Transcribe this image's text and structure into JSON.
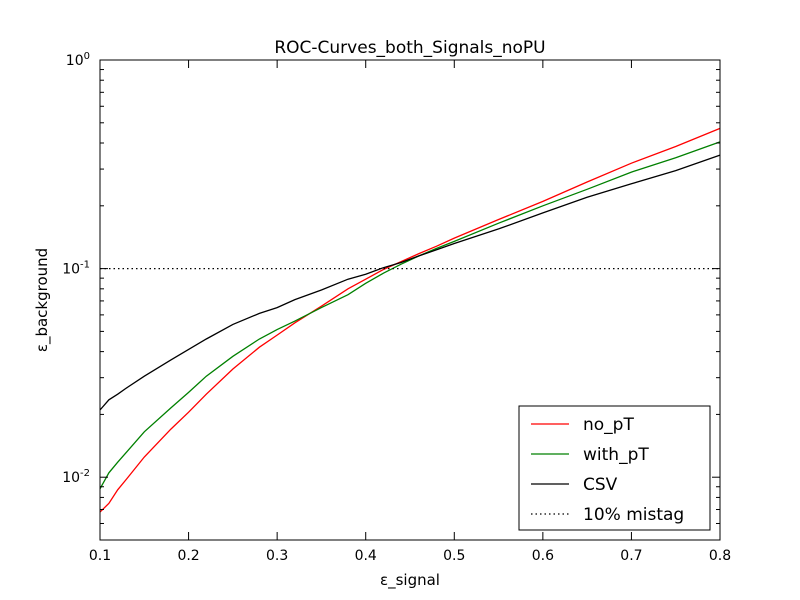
{
  "chart_data": {
    "type": "line",
    "title": "ROC-Curves_both_Signals_noPU",
    "xlabel": "ε_signal",
    "ylabel": "ε_background",
    "xlim": [
      0.1,
      0.8
    ],
    "ylim": [
      0.005,
      1
    ],
    "yscale": "log",
    "grid": false,
    "legend_position": "bottom-right",
    "x_ticks": [
      {
        "value": 0.1,
        "label": "0.1"
      },
      {
        "value": 0.2,
        "label": "0.2"
      },
      {
        "value": 0.3,
        "label": "0.3"
      },
      {
        "value": 0.4,
        "label": "0.4"
      },
      {
        "value": 0.5,
        "label": "0.5"
      },
      {
        "value": 0.6,
        "label": "0.6"
      },
      {
        "value": 0.7,
        "label": "0.7"
      },
      {
        "value": 0.8,
        "label": "0.8"
      }
    ],
    "y_ticks": [
      {
        "value": 0.01,
        "base": "10",
        "exp": "-2"
      },
      {
        "value": 0.1,
        "base": "10",
        "exp": "-1"
      },
      {
        "value": 1,
        "base": "10",
        "exp": "0"
      }
    ],
    "series": [
      {
        "name": "no_pT",
        "color": "#ff0000",
        "style": "solid",
        "x": [
          0.1,
          0.11,
          0.12,
          0.13,
          0.15,
          0.18,
          0.2,
          0.22,
          0.25,
          0.28,
          0.3,
          0.32,
          0.35,
          0.38,
          0.4,
          0.42,
          0.44,
          0.46,
          0.48,
          0.5,
          0.55,
          0.6,
          0.65,
          0.7,
          0.75,
          0.8
        ],
        "y": [
          0.0068,
          0.0075,
          0.0087,
          0.0098,
          0.0125,
          0.017,
          0.0205,
          0.025,
          0.033,
          0.042,
          0.048,
          0.055,
          0.066,
          0.08,
          0.089,
          0.099,
          0.108,
          0.118,
          0.128,
          0.14,
          0.172,
          0.21,
          0.26,
          0.32,
          0.385,
          0.47
        ]
      },
      {
        "name": "with_pT",
        "color": "#008000",
        "style": "solid",
        "x": [
          0.1,
          0.11,
          0.12,
          0.13,
          0.15,
          0.18,
          0.2,
          0.22,
          0.25,
          0.28,
          0.3,
          0.32,
          0.35,
          0.38,
          0.4,
          0.42,
          0.44,
          0.46,
          0.48,
          0.5,
          0.55,
          0.6,
          0.65,
          0.7,
          0.75,
          0.8
        ],
        "y": [
          0.0088,
          0.0105,
          0.0118,
          0.0132,
          0.0165,
          0.0215,
          0.0255,
          0.0305,
          0.038,
          0.046,
          0.051,
          0.056,
          0.065,
          0.075,
          0.085,
          0.095,
          0.105,
          0.115,
          0.125,
          0.135,
          0.165,
          0.2,
          0.24,
          0.29,
          0.34,
          0.405
        ]
      },
      {
        "name": "CSV",
        "color": "#000000",
        "style": "solid",
        "x": [
          0.1,
          0.11,
          0.12,
          0.13,
          0.15,
          0.18,
          0.2,
          0.22,
          0.25,
          0.28,
          0.3,
          0.32,
          0.35,
          0.38,
          0.4,
          0.42,
          0.44,
          0.46,
          0.48,
          0.5,
          0.55,
          0.6,
          0.65,
          0.7,
          0.75,
          0.8
        ],
        "y": [
          0.021,
          0.0235,
          0.025,
          0.0268,
          0.0305,
          0.0365,
          0.041,
          0.046,
          0.054,
          0.061,
          0.065,
          0.071,
          0.079,
          0.089,
          0.094,
          0.101,
          0.107,
          0.115,
          0.123,
          0.132,
          0.155,
          0.185,
          0.22,
          0.255,
          0.295,
          0.35
        ]
      },
      {
        "name": "10% mistag",
        "color": "#000000",
        "style": "dotted",
        "x": [
          0.1,
          0.8
        ],
        "y": [
          0.1,
          0.1
        ]
      }
    ]
  }
}
